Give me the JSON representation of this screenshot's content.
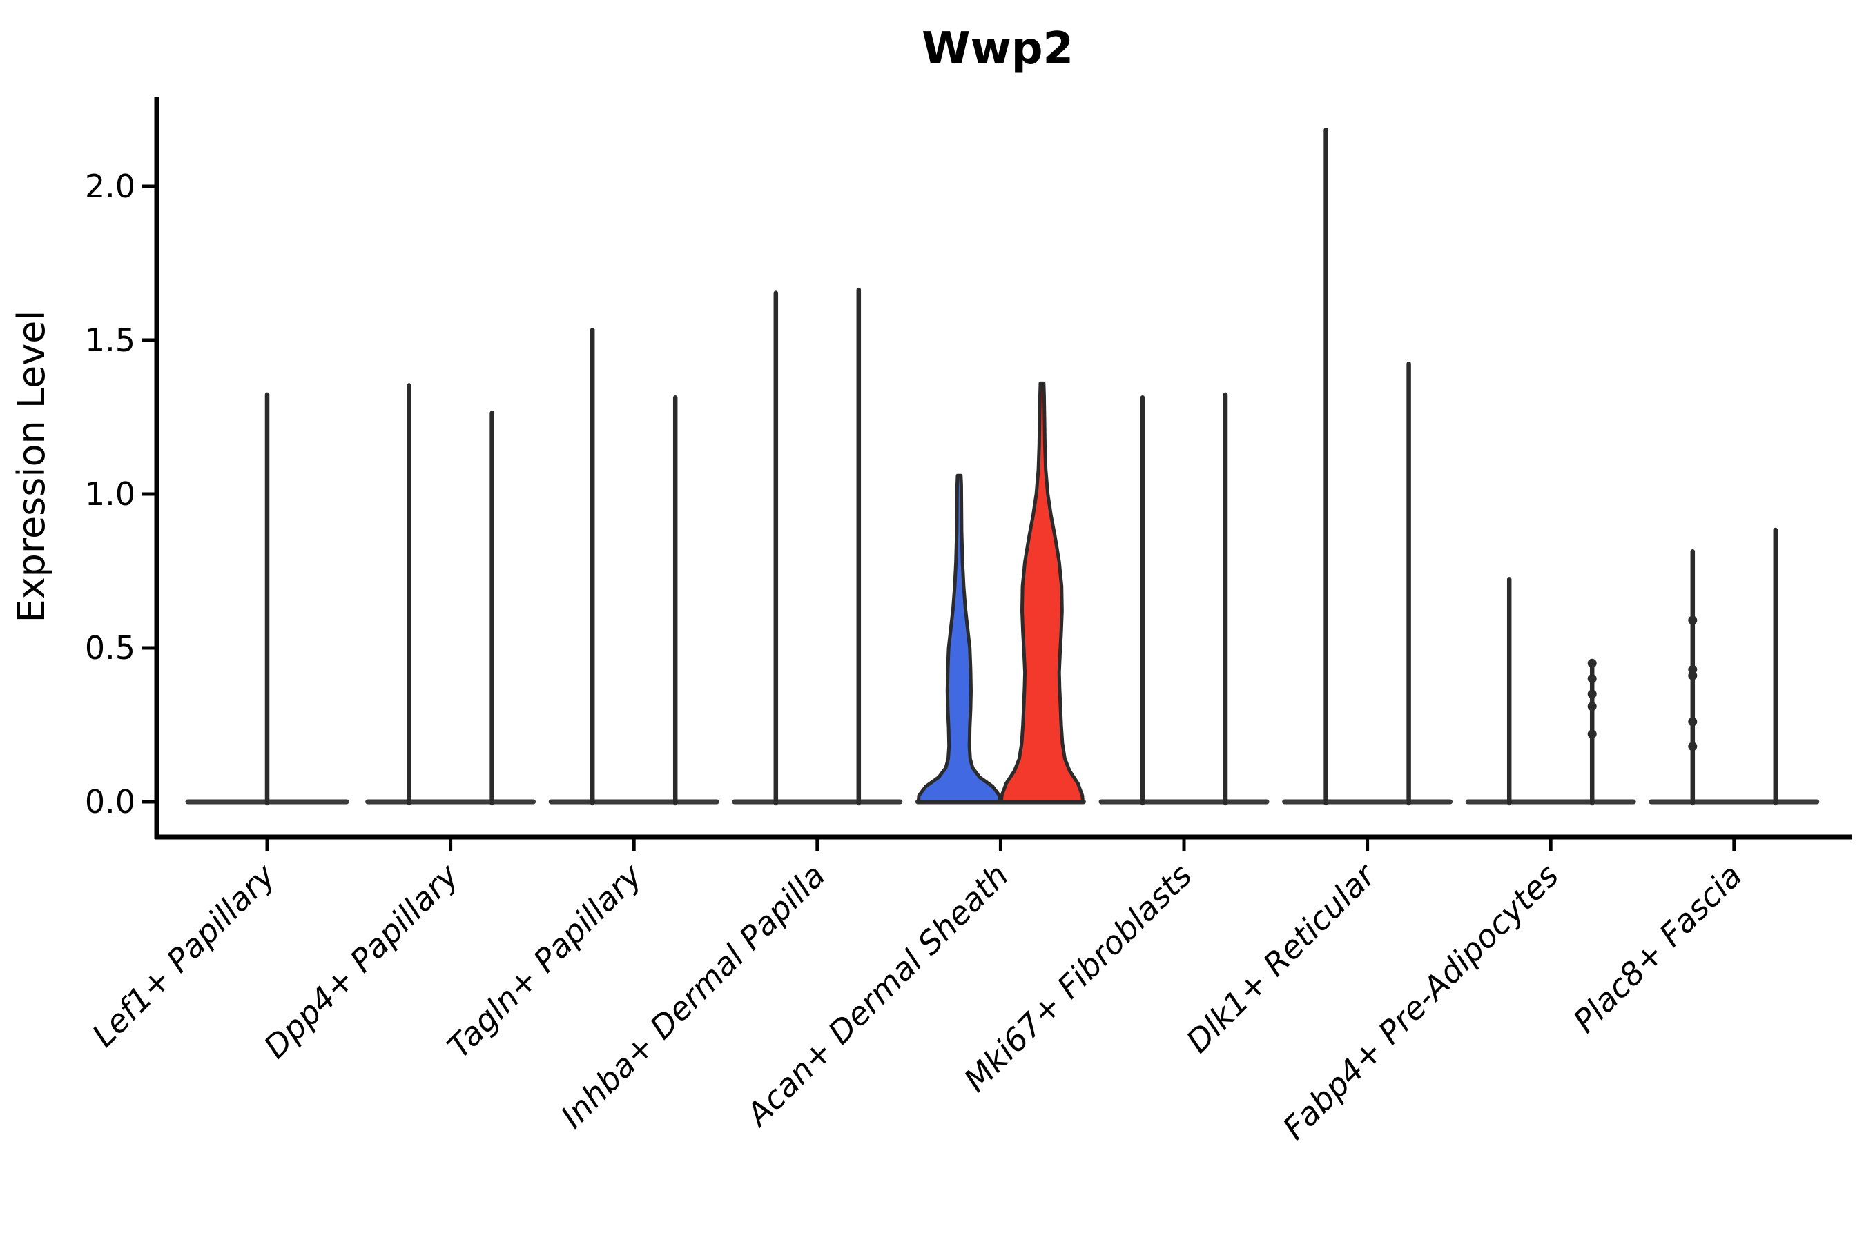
{
  "colors": {
    "condition_a": "#4169E1",
    "condition_b": "#F2392C",
    "outline": "#2B2B2B",
    "baseline": "#3A3A3A",
    "axis": "#000000"
  },
  "chart_data": {
    "type": "violin",
    "title": "Wwp2",
    "ylabel": "Expression Level",
    "xlabel": "",
    "ylim": [
      0,
      2.29
    ],
    "grid": false,
    "legend": "none",
    "split_colors": [
      "#4169E1",
      "#F2392C"
    ],
    "y_ticks": [
      {
        "value": 0.0,
        "label": "0.0"
      },
      {
        "value": 0.5,
        "label": "0.5"
      },
      {
        "value": 1.0,
        "label": "1.0"
      },
      {
        "value": 1.5,
        "label": "1.5"
      },
      {
        "value": 2.0,
        "label": "2.0"
      }
    ],
    "categories": [
      "Lef1+ Papillary",
      "Dpp4+ Papillary",
      "Tagln+ Papillary",
      "Inhba+ Dermal Papilla",
      "Acan+ Dermal Sheath",
      "Mki67+ Fibroblasts",
      "Dlk1+ Reticular",
      "Fabp4+ Pre-Adipocytes",
      "Plac8+ Fascia"
    ],
    "groups": [
      {
        "category": "Lef1+ Papillary",
        "violins": [
          {
            "kind": "collapsed",
            "span": "full",
            "max": 1.33
          }
        ]
      },
      {
        "category": "Dpp4+ Papillary",
        "violins": [
          {
            "kind": "collapsed",
            "max": 1.36
          },
          {
            "kind": "collapsed",
            "max": 1.27
          }
        ]
      },
      {
        "category": "Tagln+ Papillary",
        "violins": [
          {
            "kind": "collapsed",
            "max": 1.54
          },
          {
            "kind": "collapsed",
            "max": 1.32
          }
        ]
      },
      {
        "category": "Inhba+ Dermal Papilla",
        "violins": [
          {
            "kind": "collapsed",
            "max": 1.66
          },
          {
            "kind": "collapsed",
            "max": 1.67
          }
        ]
      },
      {
        "category": "Acan+ Dermal Sheath",
        "violins": [
          {
            "kind": "filled",
            "max": 1.06,
            "color_key": "condition_a",
            "profile": [
              [
                0,
                1.0
              ],
              [
                0.02,
                0.99
              ],
              [
                0.05,
                0.82
              ],
              [
                0.08,
                0.5
              ],
              [
                0.11,
                0.33
              ],
              [
                0.14,
                0.27
              ],
              [
                0.18,
                0.25
              ],
              [
                0.24,
                0.26
              ],
              [
                0.3,
                0.28
              ],
              [
                0.36,
                0.29
              ],
              [
                0.43,
                0.28
              ],
              [
                0.5,
                0.26
              ],
              [
                0.57,
                0.2
              ],
              [
                0.63,
                0.15
              ],
              [
                0.7,
                0.11
              ],
              [
                0.78,
                0.08
              ],
              [
                0.88,
                0.06
              ],
              [
                0.97,
                0.055
              ],
              [
                1.03,
                0.05
              ],
              [
                1.06,
                0.04
              ]
            ]
          },
          {
            "kind": "filled",
            "max": 1.36,
            "color_key": "condition_b",
            "profile": [
              [
                0,
                1.0
              ],
              [
                0.02,
                0.99
              ],
              [
                0.06,
                0.88
              ],
              [
                0.1,
                0.68
              ],
              [
                0.14,
                0.56
              ],
              [
                0.19,
                0.5
              ],
              [
                0.25,
                0.47
              ],
              [
                0.31,
                0.45
              ],
              [
                0.37,
                0.43
              ],
              [
                0.42,
                0.42
              ],
              [
                0.48,
                0.44
              ],
              [
                0.55,
                0.47
              ],
              [
                0.62,
                0.49
              ],
              [
                0.7,
                0.48
              ],
              [
                0.78,
                0.42
              ],
              [
                0.86,
                0.32
              ],
              [
                0.93,
                0.22
              ],
              [
                1.0,
                0.14
              ],
              [
                1.08,
                0.09
              ],
              [
                1.16,
                0.07
              ],
              [
                1.25,
                0.06
              ],
              [
                1.32,
                0.05
              ],
              [
                1.36,
                0.04
              ]
            ]
          }
        ]
      },
      {
        "category": "Mki67+ Fibroblasts",
        "violins": [
          {
            "kind": "collapsed",
            "max": 1.32
          },
          {
            "kind": "collapsed",
            "max": 1.33
          }
        ]
      },
      {
        "category": "Dlk1+ Reticular",
        "violins": [
          {
            "kind": "collapsed",
            "max": 2.19
          },
          {
            "kind": "collapsed",
            "max": 1.43
          }
        ]
      },
      {
        "category": "Fabp4+ Pre-Adipocytes",
        "violins": [
          {
            "kind": "collapsed",
            "max": 0.73
          },
          {
            "kind": "collapsed",
            "max": 0.45,
            "dots": [
              0.45,
              0.4,
              0.35,
              0.31,
              0.22
            ]
          }
        ]
      },
      {
        "category": "Plac8+ Fascia",
        "violins": [
          {
            "kind": "collapsed",
            "max": 0.82,
            "dots": [
              0.59,
              0.43,
              0.41,
              0.26,
              0.18
            ]
          },
          {
            "kind": "collapsed",
            "max": 0.89
          }
        ]
      }
    ]
  }
}
